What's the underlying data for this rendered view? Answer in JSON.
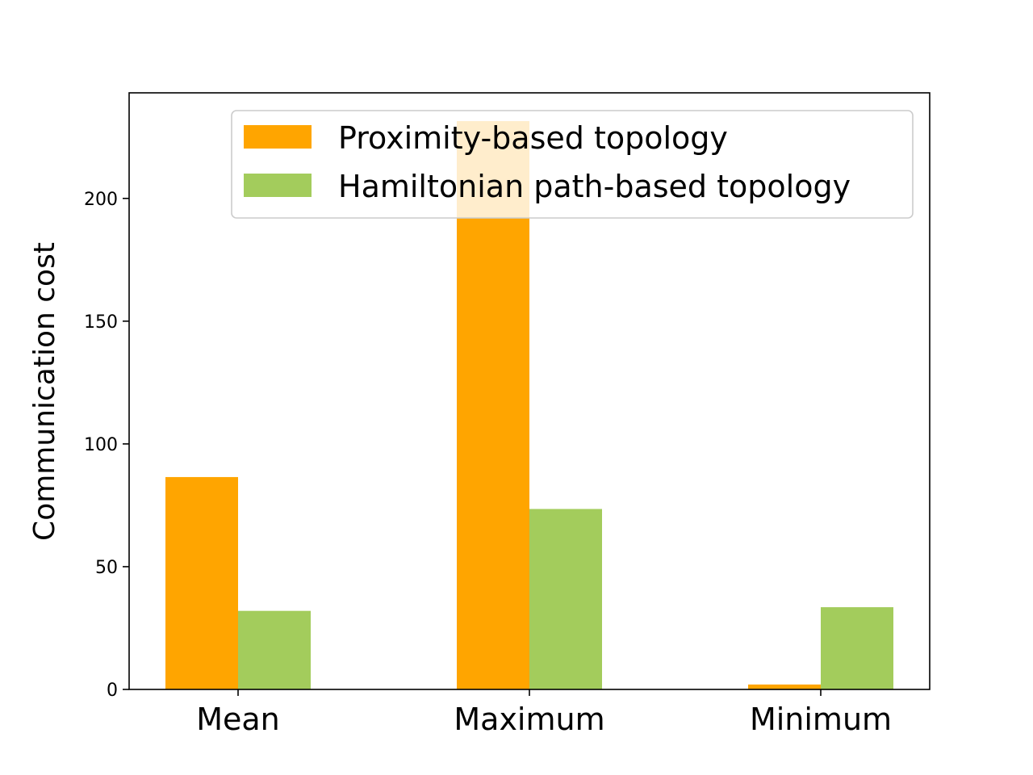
{
  "chart_data": {
    "type": "bar",
    "categories": [
      "Mean",
      "Maximum",
      "Minimum"
    ],
    "series": [
      {
        "name": "Proximity-based topology",
        "values": [
          86.5,
          231.5,
          2.0
        ],
        "color": "#FFA500"
      },
      {
        "name": "Hamiltonian path-based topology",
        "values": [
          32.0,
          73.5,
          33.5
        ],
        "color": "#A3CC5C"
      }
    ],
    "title": "",
    "xlabel": "",
    "ylabel": "Communication cost",
    "ylim": [
      0,
      243
    ],
    "yticks": [
      0,
      50,
      100,
      150,
      200
    ],
    "grid": false,
    "legend_position": "top-right"
  }
}
